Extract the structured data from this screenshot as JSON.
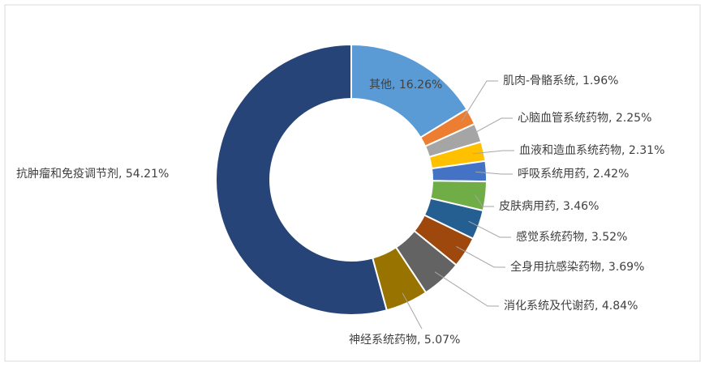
{
  "chart_data": {
    "type": "donut",
    "labels": [
      "其他, 16.26%",
      "肌肉-骨骼系统, 1.96%",
      "心脑血管系统药物, 2.25%",
      "血液和造血系统药物, 2.31%",
      "呼吸系统用药, 2.42%",
      "皮肤病用药, 3.46%",
      "感觉系统药物, 3.52%",
      "全身用抗感染药物, 3.69%",
      "消化系统及代谢药, 4.84%",
      "神经系统药物, 5.07%",
      "抗肿瘤和免疫调节剂, 54.21%"
    ],
    "values": [
      16.26,
      1.96,
      2.25,
      2.31,
      2.42,
      3.46,
      3.52,
      3.69,
      4.84,
      5.07,
      54.21
    ],
    "colors": [
      "#5b9bd5",
      "#ed7d31",
      "#a5a5a5",
      "#ffc000",
      "#4472c4",
      "#70ad47",
      "#255e91",
      "#9e480e",
      "#636363",
      "#997300",
      "#264478"
    ]
  }
}
